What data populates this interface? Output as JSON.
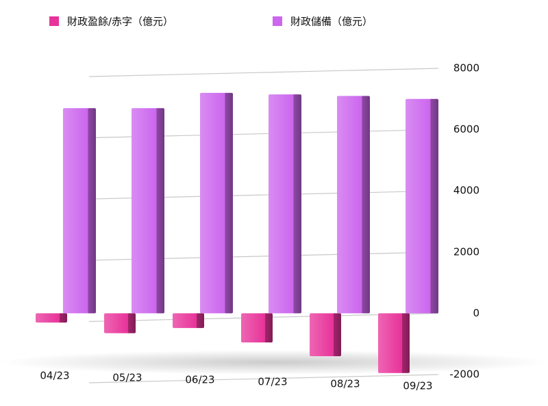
{
  "chart_data": {
    "type": "bar",
    "categories": [
      "04/23",
      "05/23",
      "06/23",
      "07/23",
      "08/23",
      "09/23"
    ],
    "series": [
      {
        "name": "財政盈餘/赤字（億元）",
        "color": "#e8339a",
        "values": [
          -300,
          -650,
          -480,
          -950,
          -1400,
          -1950
        ]
      },
      {
        "name": "財政儲備（億元）",
        "color": "#cc66ee",
        "values": [
          6700,
          6700,
          7200,
          7150,
          7100,
          7000
        ]
      }
    ],
    "ylim": [
      -2000,
      8000
    ],
    "yticks": [
      -2000,
      0,
      2000,
      4000,
      6000,
      8000
    ],
    "grid": true
  }
}
